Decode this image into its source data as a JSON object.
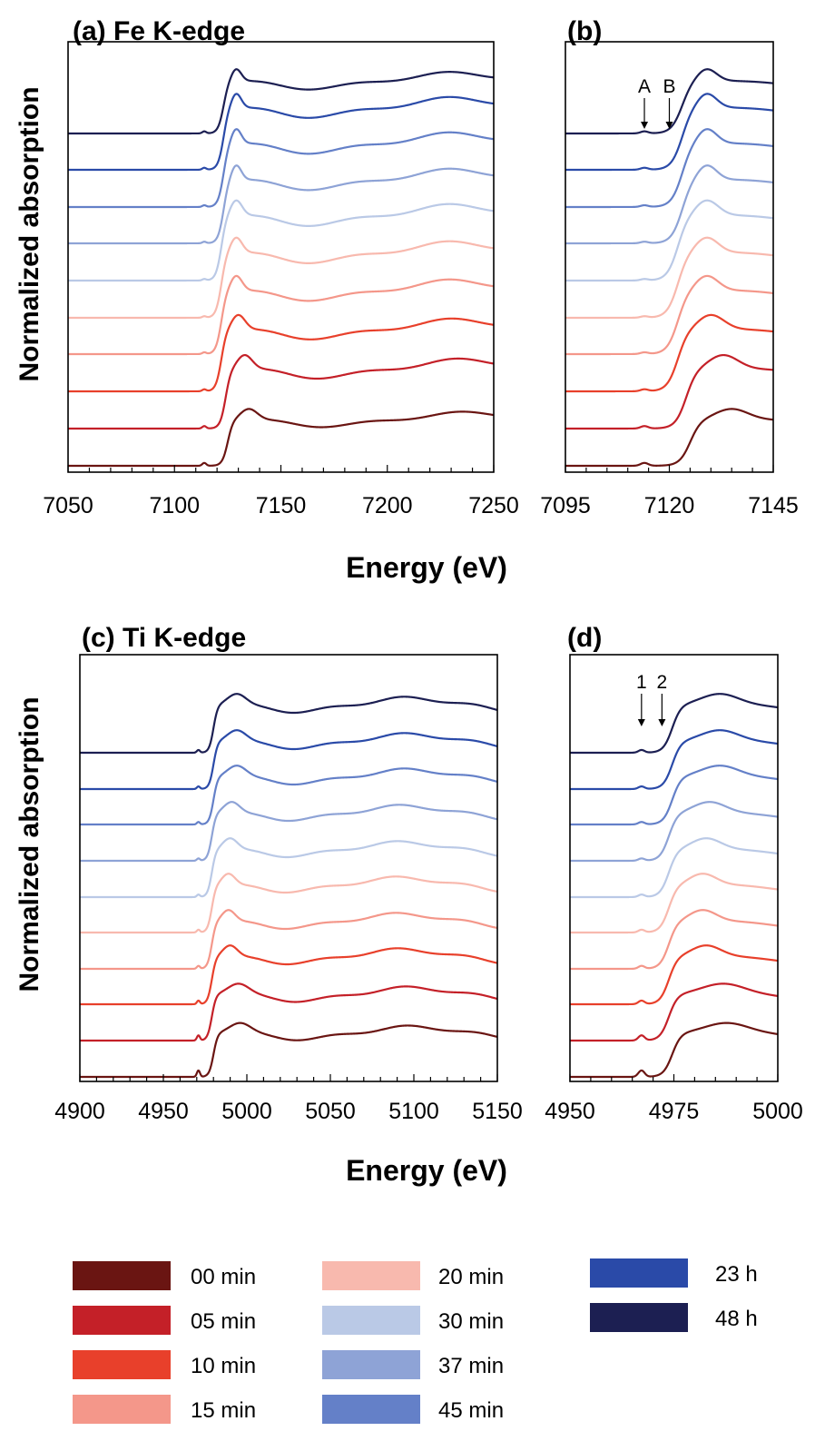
{
  "chart_data": [
    {
      "panel": "a",
      "type": "line",
      "title": "(a) Fe K-edge",
      "ylabel": "Normalized absorption",
      "xlabel": "Energy (eV)",
      "xlim": [
        7050,
        7250
      ],
      "x_ticks": [
        "7050",
        "7100",
        "7150",
        "7200",
        "7250"
      ],
      "stacked_offset": true,
      "pre_edge_x": 7114,
      "pre_edge_h": [
        0.45,
        0.38,
        0.3,
        0.26,
        0.22,
        0.22,
        0.24,
        0.26,
        0.3,
        0.32
      ],
      "baselines": [
        7,
        48,
        89,
        130,
        170,
        211,
        252,
        292,
        333,
        373
      ],
      "edge_x": [
        7125,
        7124,
        7122,
        7122,
        7122,
        7122,
        7123,
        7123,
        7123,
        7123
      ],
      "peak_x": [
        7135,
        7133,
        7130,
        7129,
        7129,
        7129,
        7129,
        7129,
        7129,
        7129
      ],
      "amp": [
        58,
        75,
        78,
        80,
        82,
        82,
        80,
        80,
        78,
        66
      ],
      "annotations": []
    },
    {
      "panel": "b",
      "type": "line",
      "title": "(b)",
      "xlim": [
        7095,
        7145
      ],
      "x_ticks": [
        "7095",
        "7120",
        "7145"
      ],
      "stacked_offset": true,
      "pre_edge_x": 7114,
      "pre_edge_h": [
        0.45,
        0.38,
        0.3,
        0.26,
        0.22,
        0.22,
        0.24,
        0.26,
        0.3,
        0.32
      ],
      "baselines": [
        7,
        48,
        89,
        130,
        170,
        211,
        252,
        292,
        333,
        373
      ],
      "edge_x": [
        7125,
        7124,
        7122,
        7122,
        7122,
        7122,
        7123,
        7123,
        7123,
        7123
      ],
      "peak_x": [
        7135,
        7133,
        7130,
        7129,
        7129,
        7129,
        7129,
        7129,
        7129,
        7129
      ],
      "amp": [
        58,
        75,
        78,
        80,
        82,
        82,
        80,
        80,
        78,
        66
      ],
      "annotations": [
        {
          "label": "A",
          "x": 7114
        },
        {
          "label": "B",
          "x": 7120
        }
      ]
    },
    {
      "panel": "c",
      "type": "line",
      "title": "(c) Ti K-edge",
      "ylabel": "Normalized absorption",
      "xlabel": "Energy (eV)",
      "xlim": [
        4900,
        5150
      ],
      "x_ticks": [
        "4900",
        "4950",
        "5000",
        "5050",
        "5100",
        "5150"
      ],
      "stacked_offset": true,
      "pre_edge_x": 4971,
      "pre_edge_h": [
        1.0,
        0.8,
        0.55,
        0.45,
        0.42,
        0.38,
        0.35,
        0.38,
        0.4,
        0.42
      ],
      "baselines": [
        5,
        45,
        85,
        124,
        164,
        203,
        243,
        283,
        322,
        362
      ],
      "edge_x": [
        4980,
        4979,
        4979,
        4979,
        4979,
        4979,
        4979,
        4980,
        4980,
        4980
      ],
      "peak_x": [
        4996,
        4995,
        4990,
        4989,
        4989,
        4990,
        4991,
        4994,
        4994,
        4994
      ],
      "amp": [
        55,
        58,
        60,
        60,
        60,
        60,
        60,
        60,
        60,
        60
      ],
      "annotations": []
    },
    {
      "panel": "d",
      "type": "line",
      "title": "(d)",
      "xlim": [
        4950,
        5011
      ],
      "x_ticks": [
        "4950",
        "4975",
        "5000"
      ],
      "stacked_offset": true,
      "pre_edge_x": 4971,
      "pre_edge_h": [
        1.0,
        0.8,
        0.55,
        0.45,
        0.42,
        0.38,
        0.35,
        0.38,
        0.4,
        0.42
      ],
      "baselines": [
        5,
        45,
        85,
        124,
        164,
        203,
        243,
        283,
        322,
        362
      ],
      "edge_x": [
        4980,
        4979,
        4979,
        4979,
        4979,
        4979,
        4979,
        4980,
        4980,
        4980
      ],
      "peak_x": [
        4996,
        4995,
        4990,
        4989,
        4989,
        4990,
        4991,
        4994,
        4994,
        4994
      ],
      "amp": [
        55,
        58,
        60,
        60,
        60,
        60,
        60,
        60,
        60,
        60
      ],
      "annotations": [
        {
          "label": "1",
          "x": 4971
        },
        {
          "label": "2",
          "x": 4977
        }
      ]
    }
  ],
  "legend": [
    {
      "label": "00 min",
      "color": "#6a1512"
    },
    {
      "label": "05 min",
      "color": "#c42028"
    },
    {
      "label": "10 min",
      "color": "#e8402b"
    },
    {
      "label": "15 min",
      "color": "#f4978a"
    },
    {
      "label": "20 min",
      "color": "#f8b9ae"
    },
    {
      "label": "30 min",
      "color": "#bac9e6"
    },
    {
      "label": "37 min",
      "color": "#8ea3d6"
    },
    {
      "label": "45 min",
      "color": "#6480c8"
    },
    {
      "label": "23 h",
      "color": "#2a4aa8"
    },
    {
      "label": "48 h",
      "color": "#1c1f52"
    }
  ]
}
